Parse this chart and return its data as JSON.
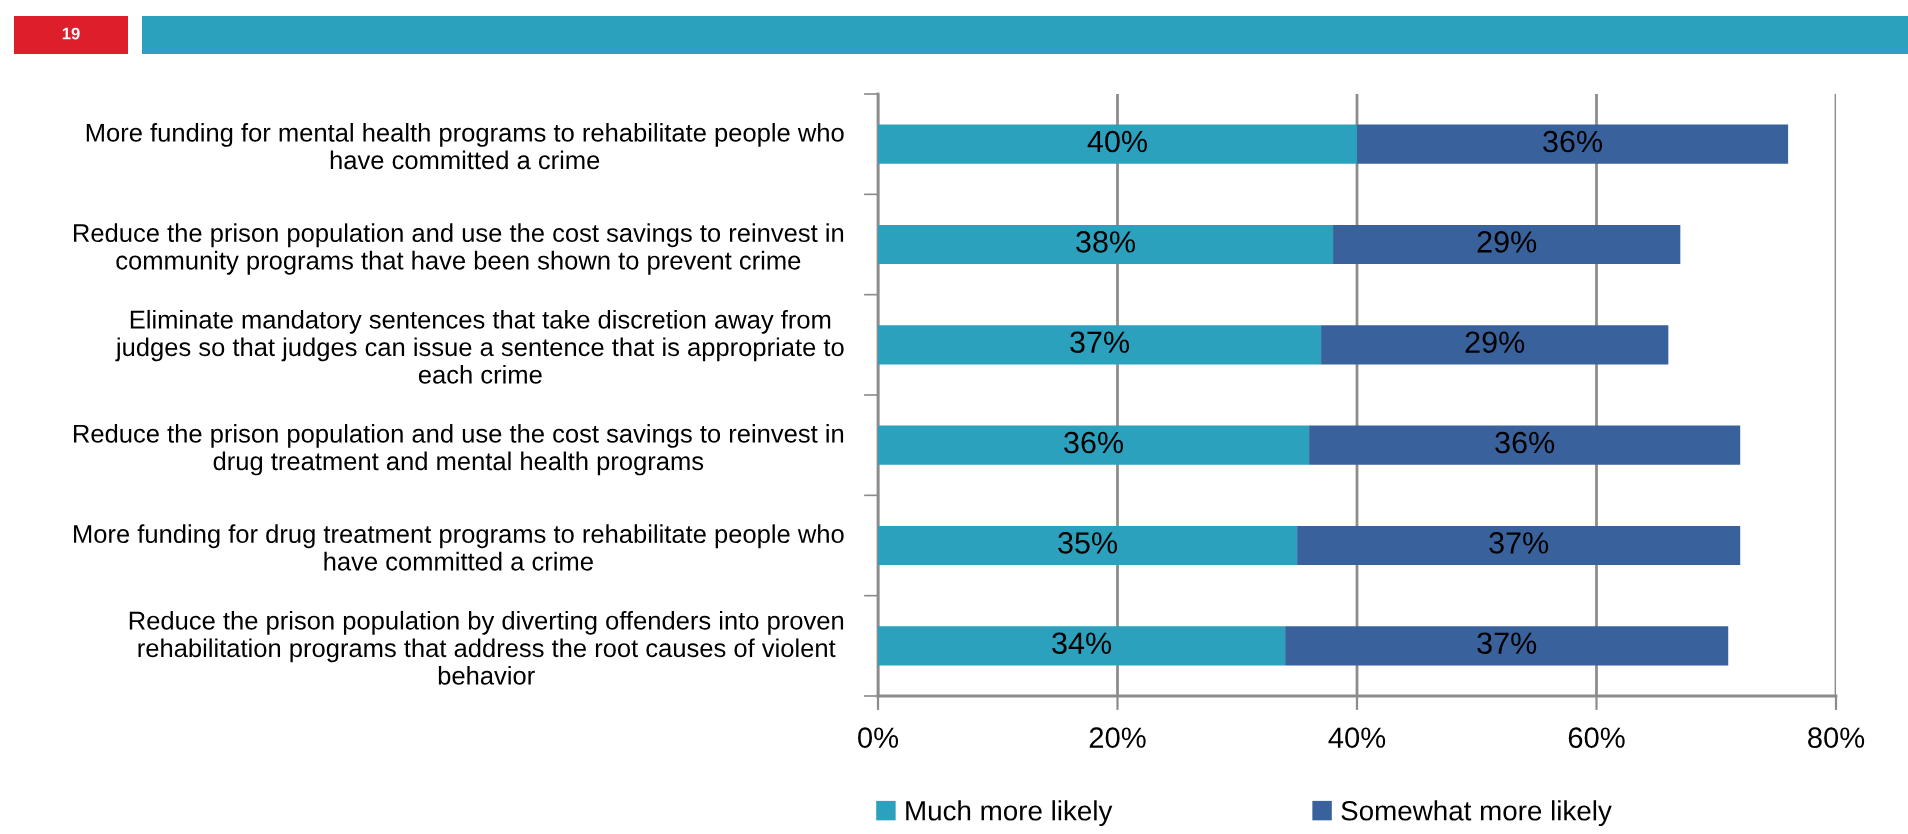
{
  "chart_data": {
    "type": "bar",
    "orientation": "horizontal",
    "stacked": true,
    "categories": [
      "More funding for mental health programs to rehabilitate people who\nhave committed a crime",
      "Reduce the prison population and use the cost savings to reinvest in\ncommunity programs that have been shown to prevent crime",
      "Eliminate mandatory sentences that take discretion away from\njudges so that judges can issue a sentence that is appropriate to\neach crime",
      "Reduce the prison population and use the cost savings to reinvest in\ndrug treatment and mental health programs",
      "More funding for drug treatment programs to rehabilitate people who\nhave committed a crime",
      "Reduce the prison population by diverting offenders into proven\nrehabilitation programs that address the root causes of violent\nbehavior"
    ],
    "series": [
      {
        "name": "Much more likely",
        "color": "#2ba1be",
        "values": [
          40,
          38,
          37,
          36,
          35,
          34
        ],
        "value_labels": [
          "40%",
          "38%",
          "37%",
          "36%",
          "35%",
          "34%"
        ]
      },
      {
        "name": "Somewhat more likely",
        "color": "#39629c",
        "values": [
          36,
          29,
          29,
          36,
          37,
          37
        ],
        "value_labels": [
          "36%",
          "29%",
          "29%",
          "36%",
          "37%",
          "37%"
        ]
      }
    ],
    "xlim": [
      0,
      80
    ],
    "xticks": [
      {
        "value": 0,
        "label": "0%"
      },
      {
        "value": 20,
        "label": "20%"
      },
      {
        "value": 40,
        "label": "40%"
      },
      {
        "value": 60,
        "label": "60%"
      },
      {
        "value": 80,
        "label": "80%"
      }
    ],
    "grid": "x",
    "legend": "bottom",
    "annotations": [
      "19"
    ]
  }
}
